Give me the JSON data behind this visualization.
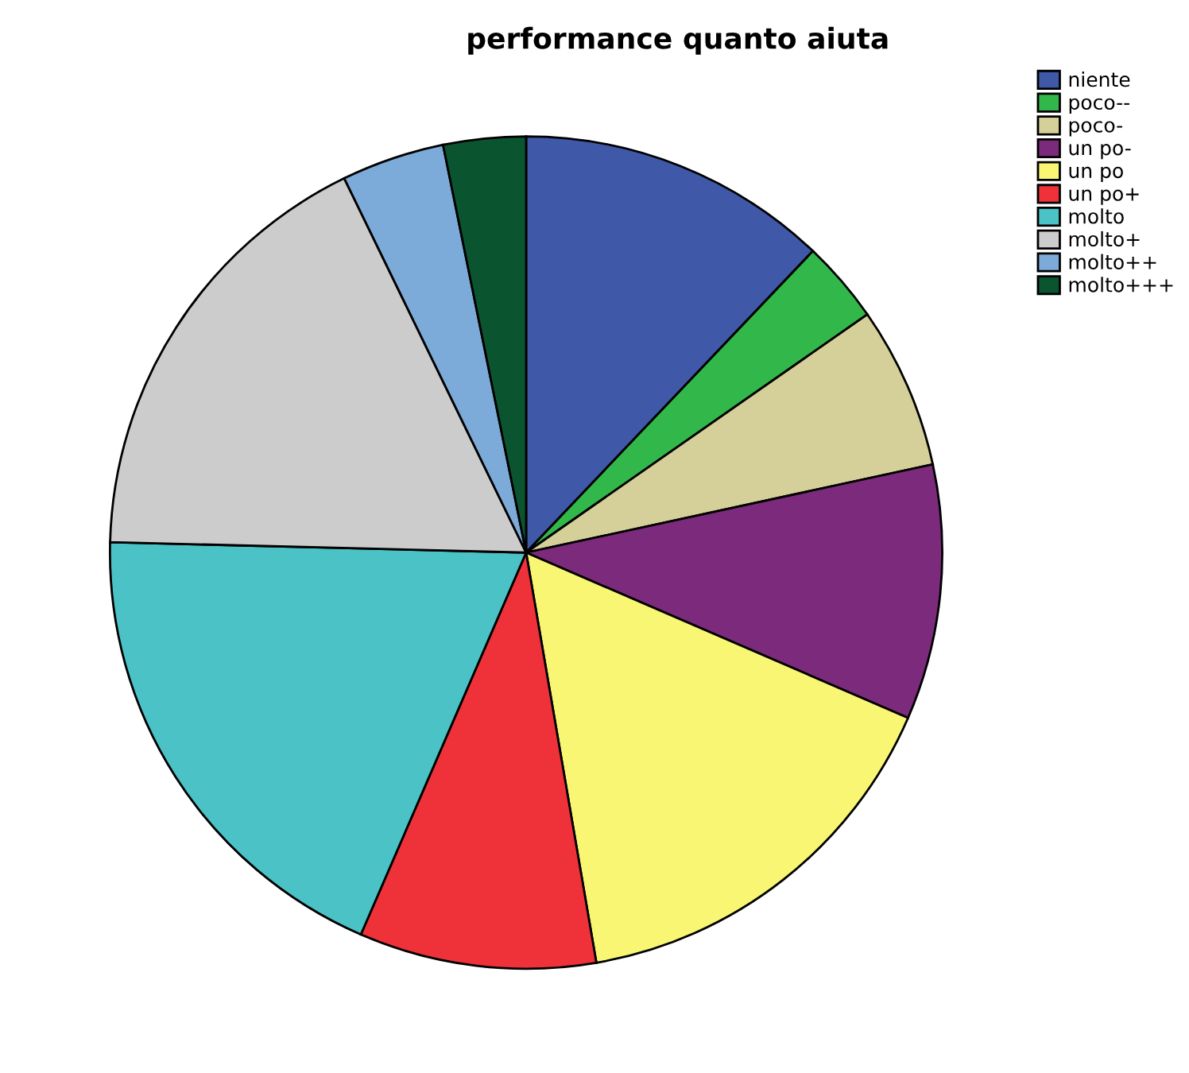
{
  "chart_data": {
    "type": "pie",
    "title": "performance quanto aiuta",
    "categories": [
      "niente",
      "poco--",
      "poco-",
      "un po-",
      "un po",
      "un po+",
      "molto",
      "molto+",
      "molto++",
      "molto+++"
    ],
    "values": [
      12.1,
      3.2,
      6.3,
      9.9,
      15.8,
      9.2,
      18.9,
      17.4,
      4.0,
      3.2
    ],
    "colors": [
      "#3f58a8",
      "#32b84a",
      "#d5cf99",
      "#7b2a7c",
      "#f9f674",
      "#ef3239",
      "#4bc2c6",
      "#cccccc",
      "#7dabd9",
      "#0a5530"
    ],
    "legend": "top right"
  }
}
